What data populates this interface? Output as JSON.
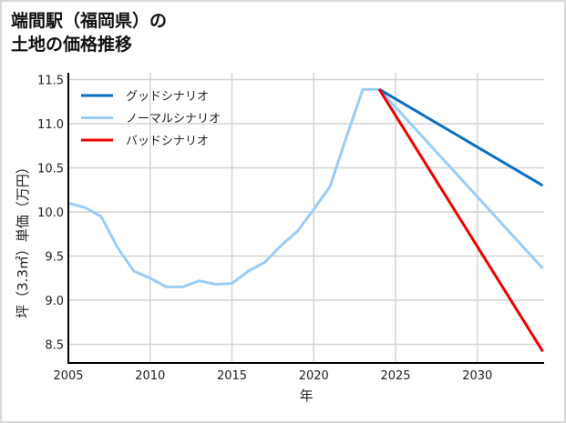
{
  "header": {
    "title_line1": "端間駅（福岡県）の",
    "title_line2": "土地の価格推移"
  },
  "chart_data": {
    "type": "line",
    "title": "端間駅（福岡県）の土地の価格推移",
    "xlabel": "年",
    "ylabel": "坪（3.3㎡）単価（万円）",
    "xlim": [
      2005,
      2034
    ],
    "ylim": [
      8.3,
      11.55
    ],
    "x_ticks": [
      "2005",
      "2010",
      "2015",
      "2020",
      "2025",
      "2030"
    ],
    "y_ticks": [
      "8.5",
      "9.0",
      "9.5",
      "10.0",
      "10.5",
      "11.0",
      "11.5"
    ],
    "grid": true,
    "legend_position": "upper left",
    "series": [
      {
        "name": "グッドシナリオ",
        "color": "#0a6fc2",
        "x": [
          2024,
          2034
        ],
        "values": [
          11.39,
          10.3
        ]
      },
      {
        "name": "ノーマルシナリオ",
        "color": "#99ccf7",
        "x": [
          2005,
          2006,
          2007,
          2008,
          2009,
          2010,
          2011,
          2012,
          2013,
          2014,
          2015,
          2016,
          2017,
          2018,
          2019,
          2020,
          2021,
          2022,
          2023,
          2024,
          2034
        ],
        "values": [
          10.1,
          10.05,
          9.95,
          9.6,
          9.33,
          9.25,
          9.15,
          9.15,
          9.22,
          9.18,
          9.19,
          9.33,
          9.43,
          9.62,
          9.78,
          10.03,
          10.29,
          10.85,
          11.39,
          11.39,
          9.36
        ]
      },
      {
        "name": "バッドシナリオ",
        "color": "#ee0000",
        "x": [
          2024,
          2034
        ],
        "values": [
          11.39,
          8.42
        ]
      }
    ]
  },
  "legend": {
    "items": [
      "グッドシナリオ",
      "ノーマルシナリオ",
      "バッドシナリオ"
    ]
  }
}
